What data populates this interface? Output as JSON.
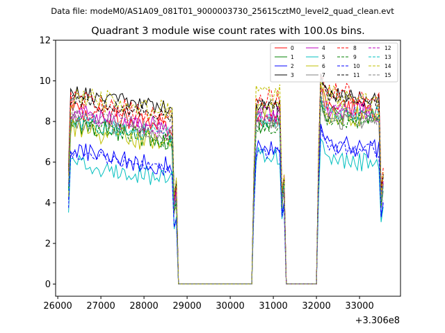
{
  "chart_data": {
    "type": "line",
    "suptitle": "Data file: modeM0/AS1A09_081T01_9000003730_25615cztM0_level2_quad_clean.evt",
    "title": "Quadrant 3 module wise count rates with 100.0s bins.",
    "xlabel": "",
    "ylabel": "",
    "x_offset_label": "+3.306e8",
    "xlim": [
      25950,
      33950
    ],
    "ylim": [
      -0.6,
      12
    ],
    "x_ticks": [
      26000,
      27000,
      28000,
      29000,
      30000,
      31000,
      32000,
      33000
    ],
    "x_tick_labels": [
      "26000",
      "27000",
      "28000",
      "29000",
      "30000",
      "31000",
      "32000",
      "33000"
    ],
    "y_ticks": [
      0,
      2,
      4,
      6,
      8,
      10,
      12
    ],
    "y_tick_labels": [
      "0",
      "2",
      "4",
      "6",
      "8",
      "10",
      "12"
    ],
    "legend_position": "top-right",
    "segments": [
      {
        "start": 26250,
        "end": 28750
      },
      {
        "start": 30550,
        "end": 31250
      },
      {
        "start": 32050,
        "end": 33550
      }
    ],
    "series": [
      {
        "name": "0",
        "color": "#ff0000",
        "dash": "solid",
        "levels": [
          8.1,
          8.2,
          8.8
        ],
        "spread": 0.5
      },
      {
        "name": "1",
        "color": "#008000",
        "dash": "solid",
        "levels": [
          7.4,
          7.9,
          8.4
        ],
        "spread": 0.5
      },
      {
        "name": "2",
        "color": "#0000ff",
        "dash": "solid",
        "levels": [
          6.1,
          6.7,
          6.9
        ],
        "spread": 0.5
      },
      {
        "name": "3",
        "color": "#000000",
        "dash": "solid",
        "levels": [
          9.0,
          8.9,
          9.4
        ],
        "spread": 0.35
      },
      {
        "name": "4",
        "color": "#bf00bf",
        "dash": "solid",
        "levels": [
          8.0,
          8.4,
          8.7
        ],
        "spread": 0.5
      },
      {
        "name": "5",
        "color": "#00bfbf",
        "dash": "solid",
        "levels": [
          5.5,
          6.3,
          6.2
        ],
        "spread": 0.45
      },
      {
        "name": "6",
        "color": "#bfbf00",
        "dash": "solid",
        "levels": [
          7.2,
          8.6,
          8.4
        ],
        "spread": 0.55
      },
      {
        "name": "7",
        "color": "#808080",
        "dash": "solid",
        "levels": [
          7.6,
          7.8,
          8.1
        ],
        "spread": 0.4
      },
      {
        "name": "8",
        "color": "#ff0000",
        "dash": "dashed",
        "levels": [
          8.6,
          9.1,
          9.5
        ],
        "spread": 0.5
      },
      {
        "name": "9",
        "color": "#008000",
        "dash": "dashed",
        "levels": [
          7.4,
          7.7,
          8.2
        ],
        "spread": 0.4
      },
      {
        "name": "10",
        "color": "#0000ff",
        "dash": "dashed",
        "levels": [
          6.0,
          6.5,
          6.8
        ],
        "spread": 0.35
      },
      {
        "name": "11",
        "color": "#000000",
        "dash": "dashed",
        "levels": [
          8.6,
          8.8,
          9.2
        ],
        "spread": 0.35
      },
      {
        "name": "12",
        "color": "#bf00bf",
        "dash": "dashed",
        "levels": [
          7.9,
          8.3,
          8.8
        ],
        "spread": 0.45
      },
      {
        "name": "13",
        "color": "#00bfbf",
        "dash": "dashed",
        "levels": [
          7.6,
          8.0,
          8.6
        ],
        "spread": 0.45
      },
      {
        "name": "14",
        "color": "#bfbf00",
        "dash": "dashed",
        "levels": [
          8.8,
          9.3,
          9.3
        ],
        "spread": 0.55
      },
      {
        "name": "15",
        "color": "#808080",
        "dash": "dashed",
        "levels": [
          7.9,
          8.1,
          8.3
        ],
        "spread": 0.4
      }
    ]
  }
}
